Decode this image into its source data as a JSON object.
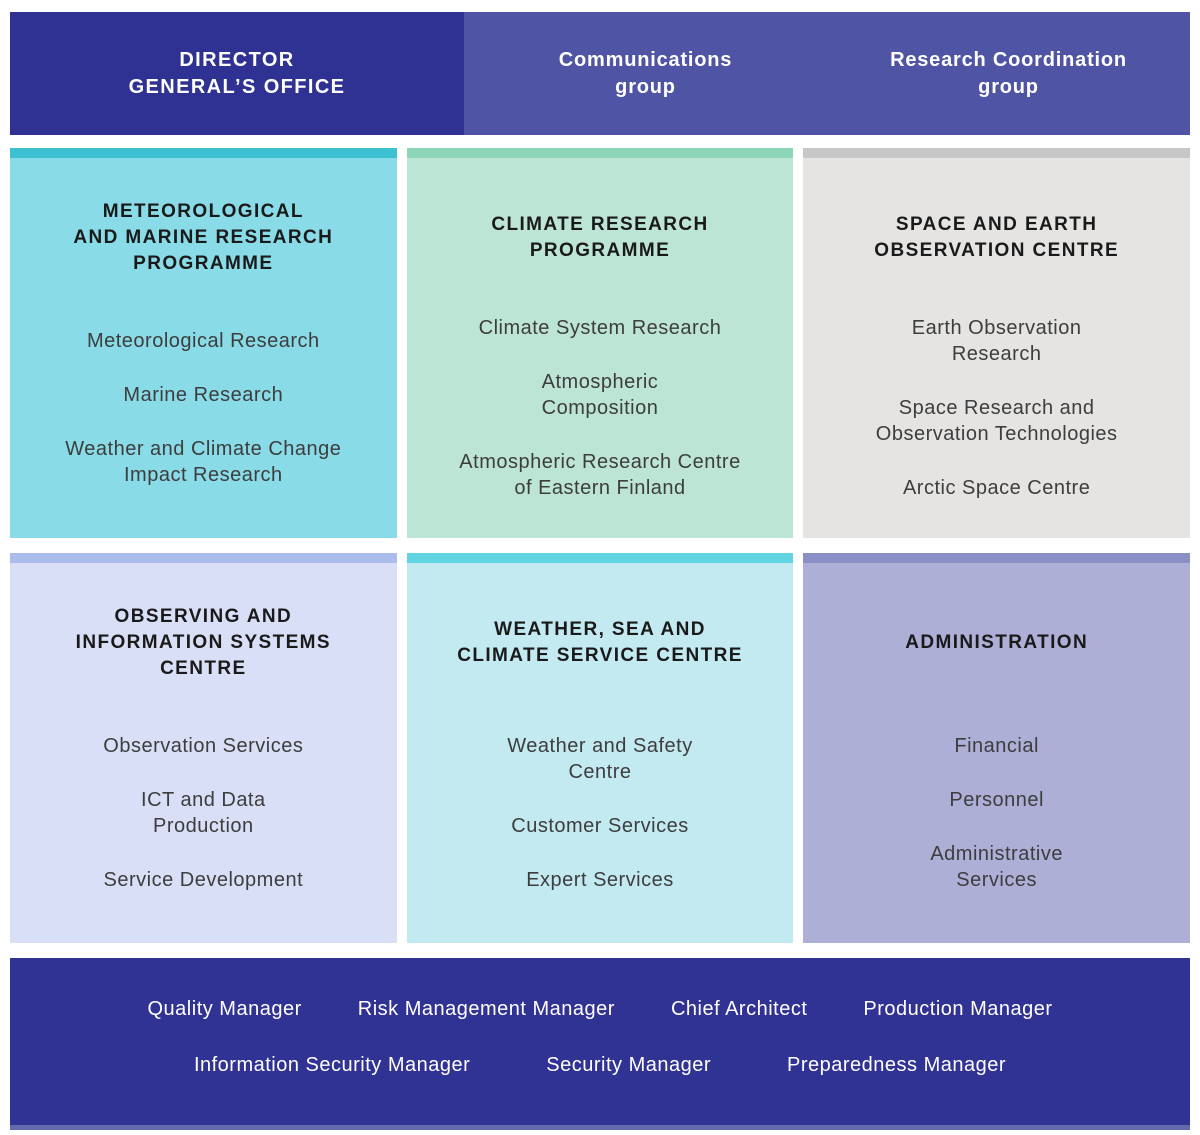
{
  "header": {
    "left_bg": "#2f3293",
    "right_bg": "#4f54a4",
    "director_office": "DIRECTOR\nGENERAL’S OFFICE",
    "groups": [
      {
        "label": "Communications\ngroup"
      },
      {
        "label": "Research Coordination\ngroup"
      }
    ]
  },
  "boxes": [
    {
      "title": "METEOROLOGICAL\nAND MARINE RESEARCH\nPROGRAMME",
      "items": [
        "Meteorological Research",
        "Marine Research",
        "Weather and Climate Change\nImpact Research"
      ],
      "strip_color": "#3cc1d3",
      "bg_color": "#89dbe7"
    },
    {
      "title": "CLIMATE RESEARCH\nPROGRAMME",
      "items": [
        "Climate System Research",
        "Atmospheric\nComposition",
        "Atmospheric Research Centre\nof Eastern Finland"
      ],
      "strip_color": "#8ed6b8",
      "bg_color": "#bce5d5"
    },
    {
      "title": "SPACE AND EARTH\nOBSERVATION CENTRE",
      "items": [
        "Earth Observation\nResearch",
        "Space Research and\nObservation Technologies",
        "Arctic Space Centre"
      ],
      "strip_color": "#c7c7c7",
      "bg_color": "#e5e4e3"
    },
    {
      "title": "OBSERVING AND\nINFORMATION SYSTEMS\nCENTRE",
      "items": [
        "Observation Services",
        "ICT and Data\nProduction",
        "Service Development"
      ],
      "strip_color": "#abbded",
      "bg_color": "#d9dff6"
    },
    {
      "title": "WEATHER, SEA AND\nCLIMATE SERVICE CENTRE",
      "items": [
        "Weather and Safety\nCentre",
        "Customer Services",
        "Expert Services"
      ],
      "strip_color": "#60d4e0",
      "bg_color": "#c3eaf1"
    },
    {
      "title": "ADMINISTRATION",
      "items": [
        "Financial",
        "Personnel",
        "Administrative\nServices"
      ],
      "strip_color": "#8a90c5",
      "bg_color": "#adafd7"
    }
  ],
  "footer": {
    "bg": "#313394",
    "strip_color": "#646aae",
    "row1": [
      "Quality Manager",
      "Risk Management Manager",
      "Chief Architect",
      "Production Manager"
    ],
    "row2": [
      "Information Security Manager",
      "Security Manager",
      "Preparedness Manager"
    ]
  }
}
